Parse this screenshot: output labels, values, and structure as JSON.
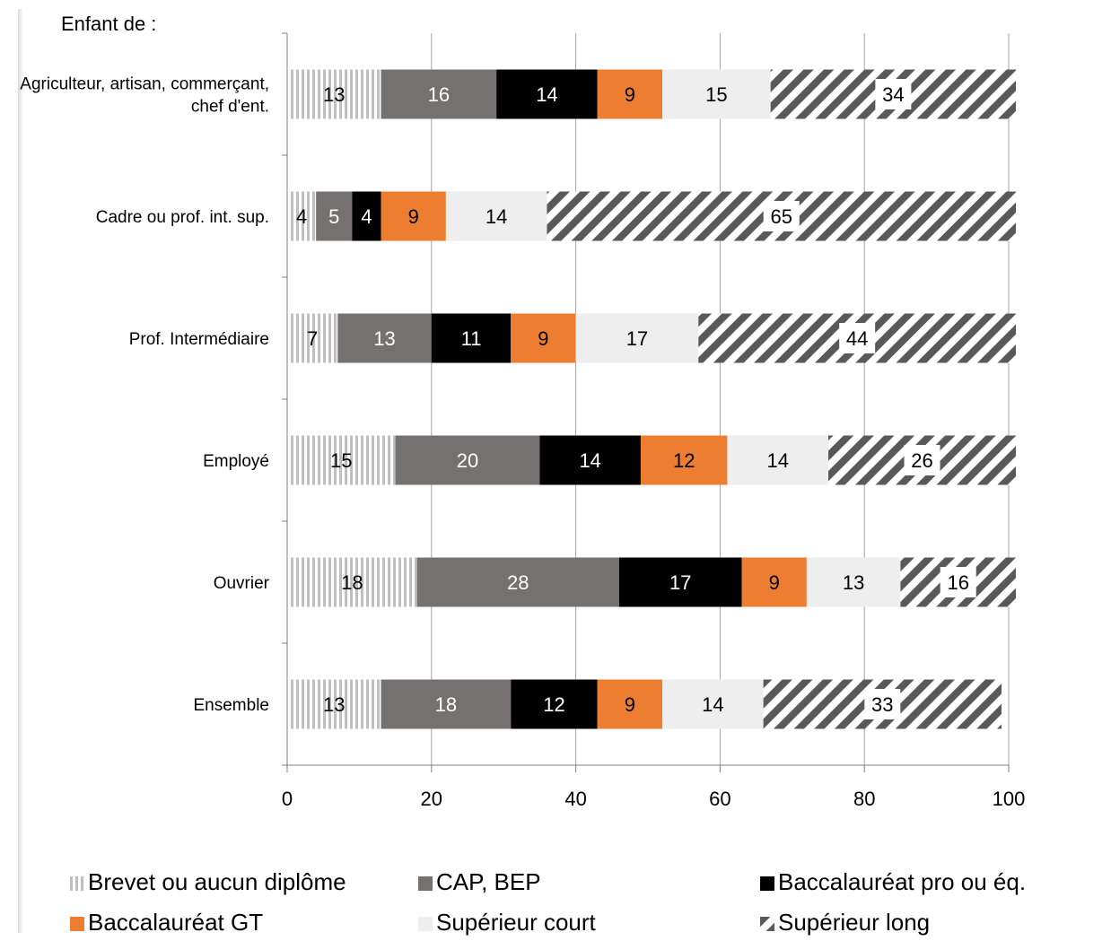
{
  "chart_data": {
    "type": "bar",
    "orientation": "horizontal",
    "stacked": true,
    "header_label": "Enfant de :",
    "categories": [
      "Agriculteur, artisan, commerçant, chef d'ent.",
      "Cadre ou prof. int. sup.",
      "Prof. Intermédiaire",
      "Employé",
      "Ouvrier",
      "Ensemble"
    ],
    "series": [
      {
        "name": "Brevet ou aucun diplôme",
        "values": [
          13,
          4,
          7,
          15,
          18,
          13
        ],
        "color": "#bfbfbf",
        "pattern": "vertical-stripes"
      },
      {
        "name": "CAP, BEP",
        "values": [
          16,
          5,
          13,
          20,
          28,
          18
        ],
        "color": "#767171",
        "pattern": "solid"
      },
      {
        "name": "Baccalauréat pro ou éq.",
        "values": [
          14,
          4,
          11,
          14,
          17,
          12
        ],
        "color": "#000000",
        "pattern": "solid"
      },
      {
        "name": "Baccalauréat GT",
        "values": [
          9,
          9,
          9,
          12,
          9,
          9
        ],
        "color": "#ed7d31",
        "pattern": "solid"
      },
      {
        "name": "Supérieur court",
        "values": [
          15,
          14,
          17,
          14,
          13,
          14
        ],
        "color": "#eeeeee",
        "pattern": "solid"
      },
      {
        "name": "Supérieur long",
        "values": [
          34,
          65,
          44,
          26,
          16,
          33
        ],
        "color": "#595959",
        "pattern": "diagonal-hatch"
      }
    ],
    "label_colors": [
      "#000000",
      "#ffffff",
      "#ffffff",
      "#000000",
      "#000000",
      "#000000"
    ],
    "xlim": [
      0,
      100
    ],
    "xticks": [
      "0",
      "20",
      "40",
      "60",
      "80",
      "100"
    ],
    "grid": true,
    "legend_position": "bottom"
  }
}
